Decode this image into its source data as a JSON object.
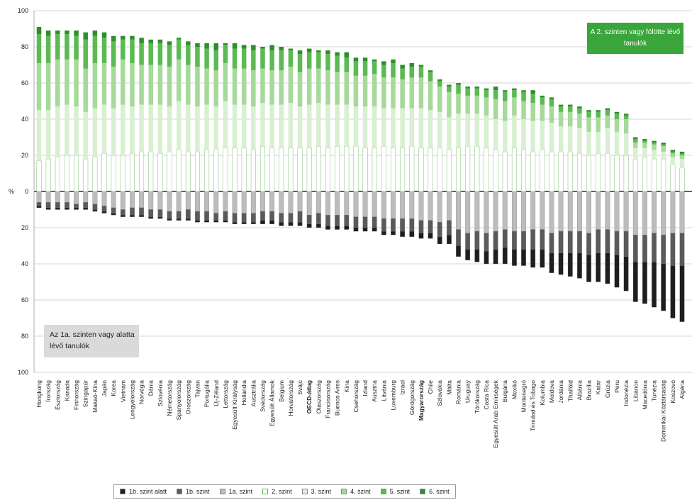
{
  "chart_data": {
    "type": "bar",
    "stacked": true,
    "diverging": true,
    "ylabel": "%",
    "y_ticks_above": [
      "100",
      "80",
      "60",
      "40",
      "20",
      "0"
    ],
    "y_ticks_below": [
      "20",
      "40",
      "60",
      "80",
      "100"
    ],
    "ylim": [
      -100,
      100
    ],
    "grid": true,
    "annotation_top": "A 2. szinten vagy fölötte lévő tanulók",
    "annotation_bottom": "Az 1a. szinten vagy alatta lévő tanulók",
    "bold_categories": [
      "OECD-átlag",
      "Magyarország"
    ],
    "colors": {
      "below1b": "#1e1e1e",
      "level1b": "#5a5a5a",
      "level1a": "#bcbcbc",
      "level2": "#ffffff",
      "level3": "#d9efd2",
      "level4": "#a6d99a",
      "level5": "#5cba52",
      "level6": "#2c8f2c",
      "accent_box": "#3aa53a"
    },
    "legend": [
      {
        "key": "below1b",
        "label": "1b. szint alatt"
      },
      {
        "key": "level1b",
        "label": "1b. szint"
      },
      {
        "key": "level1a",
        "label": "1a. szint"
      },
      {
        "key": "level2",
        "label": "2. szint"
      },
      {
        "key": "level3",
        "label": "3. szint"
      },
      {
        "key": "level4",
        "label": "4. szint"
      },
      {
        "key": "level5",
        "label": "5. szint"
      },
      {
        "key": "level6",
        "label": "6. szint"
      }
    ],
    "categories": [
      "Hongkong",
      "Írország",
      "Észtország",
      "Kanada",
      "Finnország",
      "Szingapúr",
      "Makaó-Kína",
      "Japán",
      "Korea",
      "Vietnam",
      "Lengyelország",
      "Norvégia",
      "Dánia",
      "Szlovénia",
      "Németország",
      "Spanyolország",
      "Oroszország",
      "Tajvan",
      "Portugália",
      "Új-Zéland",
      "Lettország",
      "Egyesült Királyság",
      "Hollandia",
      "Ausztrália",
      "Svédország",
      "Egyesült Államok",
      "Belgium",
      "Horvátország",
      "Svájc",
      "OECD-átlag",
      "Olaszország",
      "Franciaország",
      "Buenos Aires",
      "Kína",
      "Csehország",
      "Izland",
      "Ausztria",
      "Litvánia",
      "Luxemburg",
      "Izrael",
      "Görögország",
      "Magyarország",
      "Chile",
      "Szlovákia",
      "Málta",
      "Románia",
      "Uruguay",
      "Törökország",
      "Costa Rica",
      "Egyesült Arab Emírségek",
      "Bulgária",
      "Mexikó",
      "Montenegró",
      "Trinidad és Tobago",
      "Kolumbia",
      "Moldova",
      "Jordánia",
      "Thaiföld",
      "Albánia",
      "Brazília",
      "Katar",
      "Grúzia",
      "Peru",
      "Indonézia",
      "Libanon",
      "Macedónia",
      "Tunézia",
      "Dominikai Köztársaság",
      "Koszovó",
      "Algéria"
    ],
    "series": [
      {
        "key": "below1b",
        "values": [
          1,
          1,
          1,
          1,
          1,
          1,
          1,
          1,
          1,
          1,
          1,
          1,
          1,
          1,
          1,
          1,
          1,
          1,
          1,
          1,
          1,
          1,
          1,
          1,
          2,
          2,
          2,
          2,
          2,
          2,
          2,
          2,
          2,
          2,
          2,
          2,
          2,
          2,
          2,
          3,
          3,
          3,
          3,
          4,
          5,
          6,
          6,
          7,
          7,
          8,
          9,
          9,
          9,
          10,
          10,
          11,
          12,
          13,
          14,
          15,
          16,
          17,
          18,
          19,
          22,
          23,
          25,
          26,
          29,
          31
        ]
      },
      {
        "key": "level1b",
        "values": [
          2,
          3,
          3,
          3,
          2,
          3,
          3,
          3,
          3,
          3,
          4,
          4,
          4,
          4,
          4,
          4,
          5,
          5,
          5,
          4,
          5,
          5,
          5,
          5,
          5,
          5,
          5,
          5,
          6,
          5,
          6,
          6,
          6,
          6,
          6,
          6,
          6,
          7,
          7,
          7,
          7,
          7,
          7,
          8,
          8,
          9,
          9,
          10,
          10,
          10,
          10,
          10,
          10,
          11,
          11,
          11,
          12,
          12,
          12,
          12,
          13,
          13,
          13,
          14,
          15,
          15,
          16,
          16,
          18,
          18
        ]
      },
      {
        "key": "level1a",
        "values": [
          6,
          6,
          6,
          6,
          7,
          6,
          7,
          8,
          9,
          10,
          9,
          9,
          10,
          10,
          11,
          11,
          10,
          11,
          11,
          12,
          11,
          12,
          12,
          12,
          11,
          11,
          12,
          12,
          11,
          13,
          12,
          13,
          13,
          13,
          14,
          14,
          14,
          15,
          15,
          15,
          15,
          16,
          16,
          17,
          16,
          21,
          23,
          22,
          23,
          22,
          21,
          22,
          22,
          21,
          21,
          23,
          22,
          22,
          22,
          23,
          21,
          21,
          22,
          22,
          24,
          24,
          23,
          24,
          23,
          23
        ]
      },
      {
        "key": "level2",
        "values": [
          17,
          18,
          19,
          20,
          20,
          18,
          19,
          21,
          20,
          20,
          21,
          22,
          22,
          21,
          22,
          23,
          22,
          22,
          23,
          23,
          24,
          24,
          24,
          23,
          25,
          24,
          24,
          24,
          24,
          24,
          25,
          24,
          25,
          25,
          25,
          24,
          24,
          25,
          24,
          24,
          25,
          24,
          24,
          24,
          23,
          24,
          25,
          25,
          24,
          23,
          22,
          24,
          23,
          22,
          23,
          22,
          22,
          22,
          21,
          20,
          21,
          21,
          20,
          20,
          18,
          19,
          18,
          18,
          15,
          13
        ]
      },
      {
        "key": "level3",
        "values": [
          28,
          27,
          28,
          28,
          27,
          26,
          27,
          27,
          26,
          28,
          26,
          26,
          26,
          27,
          25,
          27,
          26,
          25,
          25,
          24,
          26,
          24,
          24,
          24,
          24,
          24,
          24,
          25,
          23,
          24,
          24,
          24,
          23,
          23,
          22,
          23,
          23,
          21,
          22,
          22,
          21,
          22,
          21,
          20,
          18,
          19,
          18,
          18,
          18,
          17,
          17,
          18,
          17,
          17,
          16,
          16,
          14,
          14,
          14,
          13,
          12,
          14,
          13,
          12,
          6,
          5,
          5,
          4,
          4,
          5
        ]
      },
      {
        "key": "level4",
        "values": [
          26,
          26,
          26,
          25,
          26,
          24,
          25,
          23,
          23,
          25,
          24,
          22,
          22,
          22,
          22,
          23,
          22,
          22,
          20,
          20,
          21,
          20,
          20,
          20,
          19,
          19,
          19,
          20,
          19,
          20,
          19,
          19,
          18,
          18,
          17,
          17,
          18,
          17,
          17,
          16,
          17,
          17,
          16,
          14,
          14,
          11,
          10,
          10,
          10,
          11,
          11,
          10,
          10,
          10,
          9,
          9,
          8,
          8,
          8,
          8,
          8,
          7,
          7,
          8,
          3,
          3,
          3,
          3,
          2,
          2
        ]
      },
      {
        "key": "level5",
        "values": [
          16,
          15,
          14,
          14,
          13,
          16,
          15,
          14,
          14,
          11,
          13,
          12,
          12,
          12,
          12,
          11,
          11,
          11,
          11,
          11,
          10,
          11,
          11,
          11,
          11,
          11,
          11,
          9,
          10,
          9,
          9,
          9,
          9,
          8,
          8,
          8,
          7,
          7,
          8,
          6,
          6,
          6,
          5,
          3,
          3,
          5,
          4,
          4,
          4,
          5,
          5,
          4,
          5,
          5,
          4,
          4,
          3,
          3,
          3,
          3,
          3,
          3,
          3,
          2,
          2,
          1,
          1,
          1,
          1,
          1
        ]
      },
      {
        "key": "level6",
        "values": [
          4,
          3,
          2,
          2,
          3,
          4,
          3,
          3,
          3,
          2,
          2,
          3,
          2,
          2,
          2,
          1,
          2,
          2,
          3,
          4,
          1,
          3,
          2,
          3,
          1,
          3,
          2,
          1,
          2,
          2,
          1,
          2,
          2,
          3,
          2,
          2,
          1,
          2,
          2,
          2,
          2,
          1,
          1,
          1,
          1,
          1,
          1,
          1,
          1,
          2,
          1,
          1,
          1,
          2,
          1,
          1,
          1,
          1,
          1,
          1,
          1,
          1,
          1,
          1,
          1,
          1,
          1,
          1,
          1,
          1
        ]
      }
    ]
  }
}
